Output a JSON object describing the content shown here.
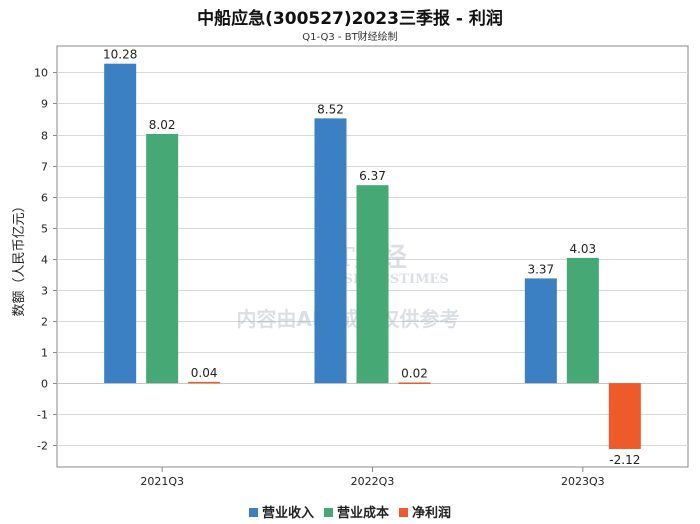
{
  "title": "中船应急(300527)2023三季报 - 利润",
  "subtitle": "Q1-Q3 - BT财经绘制",
  "watermark": {
    "logo_text": "BT财经",
    "logo_subtext": "BUSINESSTIMES",
    "notice": "内容由AI生成，仅供参考"
  },
  "colors": {
    "revenue": "#3a80c2",
    "cost": "#46a874",
    "profit": "#ef5a2a",
    "grid": "#d9d9d9",
    "axis": "#888888"
  },
  "chart_data": {
    "type": "bar",
    "title": "中船应急(300527)2023三季报 - 利润",
    "subtitle": "Q1-Q3 - BT财经绘制",
    "xlabel": "",
    "ylabel": "数额（人民币亿元）",
    "categories": [
      "2021Q3",
      "2022Q3",
      "2023Q3"
    ],
    "series": [
      {
        "name": "营业收入",
        "color": "#3a80c2",
        "values": [
          10.28,
          8.52,
          3.37
        ],
        "labels": [
          "10.28",
          "8.52",
          "3.37"
        ]
      },
      {
        "name": "营业成本",
        "color": "#46a874",
        "values": [
          8.02,
          6.37,
          4.03
        ],
        "labels": [
          "8.02",
          "6.37",
          "4.03"
        ]
      },
      {
        "name": "净利润",
        "color": "#ef5a2a",
        "values": [
          0.04,
          0.02,
          -2.12
        ],
        "labels": [
          "0.04",
          "0.02",
          "-2.12"
        ]
      }
    ],
    "yticks": [
      -2,
      -1,
      0,
      1,
      2,
      3,
      4,
      5,
      6,
      7,
      8,
      9,
      10
    ],
    "ytick_labels": [
      "-2",
      "-1",
      "0",
      "1",
      "2",
      "3",
      "4",
      "5",
      "6",
      "7",
      "8",
      "9",
      "10"
    ],
    "ylim": [
      -2.7,
      10.85
    ],
    "grid": true,
    "legend_position": "bottom"
  }
}
